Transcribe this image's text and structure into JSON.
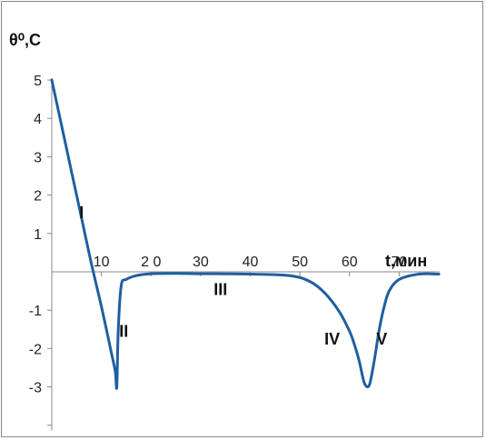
{
  "chart_data": {
    "type": "line",
    "ylabel": "θ⁰,С",
    "xlabel": "t,мин",
    "xlim": [
      0,
      80
    ],
    "ylim": [
      -4,
      5
    ],
    "x_ticks": [
      {
        "value": 10,
        "label": "10"
      },
      {
        "value": 20,
        "label": "2 0"
      },
      {
        "value": 30,
        "label": "30"
      },
      {
        "value": 40,
        "label": "40"
      },
      {
        "value": 50,
        "label": "50"
      },
      {
        "value": 60,
        "label": "60"
      },
      {
        "value": 70,
        "label": "70"
      }
    ],
    "y_ticks": [
      {
        "value": 5,
        "label": "5"
      },
      {
        "value": 4,
        "label": "4"
      },
      {
        "value": 3,
        "label": "3"
      },
      {
        "value": 2,
        "label": "2"
      },
      {
        "value": 1,
        "label": "1"
      },
      {
        "value": -1,
        "label": "-1"
      },
      {
        "value": -2,
        "label": "-2"
      },
      {
        "value": -3,
        "label": "-3"
      }
    ],
    "grid": false,
    "legend": "none",
    "series": [
      {
        "color": "#1f5fa0",
        "x": [
          0,
          2,
          4,
          6,
          8,
          10,
          12,
          12.8,
          13.1,
          13.4,
          14,
          15,
          17,
          20,
          25,
          30,
          40,
          48,
          52,
          55,
          58,
          60,
          61,
          62,
          63,
          64,
          65,
          66,
          67,
          68,
          70,
          74,
          78
        ],
        "y": [
          5,
          3.8,
          2.6,
          1.4,
          0.2,
          -0.9,
          -2.1,
          -2.6,
          -3,
          -1.5,
          -0.35,
          -0.2,
          -0.1,
          -0.05,
          -0.04,
          -0.05,
          -0.06,
          -0.1,
          -0.25,
          -0.55,
          -1.05,
          -1.55,
          -1.9,
          -2.35,
          -2.9,
          -2.95,
          -2.3,
          -1.5,
          -0.9,
          -0.5,
          -0.2,
          -0.06,
          -0.06
        ]
      }
    ],
    "annotations": [
      {
        "text": "I",
        "x": 6,
        "y": 1.4
      },
      {
        "text": "II",
        "x": 14.5,
        "y": -1.7
      },
      {
        "text": "III",
        "x": 34,
        "y": -0.6
      },
      {
        "text": "IV",
        "x": 56.5,
        "y": -1.9
      },
      {
        "text": "V",
        "x": 66.5,
        "y": -1.9
      }
    ]
  }
}
